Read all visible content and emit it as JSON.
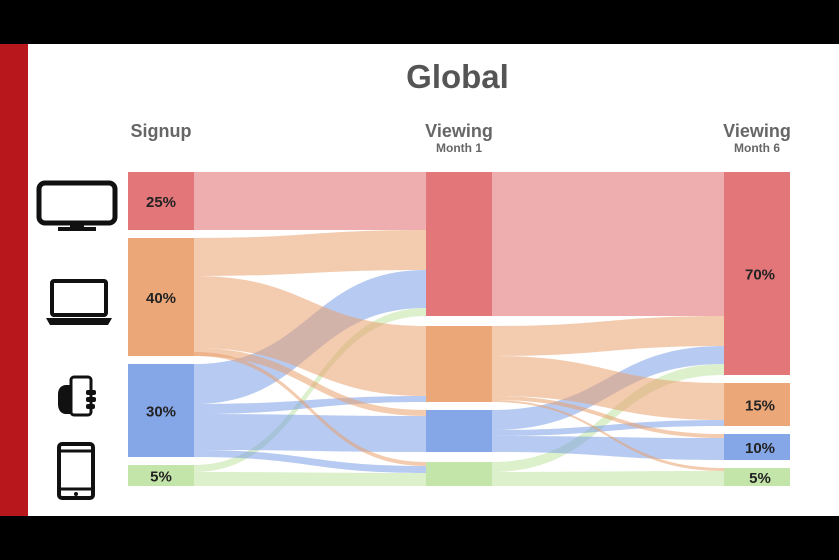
{
  "title": "Global",
  "columns": {
    "signup": {
      "label": "Signup",
      "sub": ""
    },
    "month1": {
      "label": "Viewing",
      "sub": "Month 1"
    },
    "month6": {
      "label": "Viewing",
      "sub": "Month 6"
    }
  },
  "devices": [
    {
      "name": "tv-icon"
    },
    {
      "name": "laptop-icon"
    },
    {
      "name": "phone-icon"
    },
    {
      "name": "tablet-icon"
    }
  ],
  "signup_labels": [
    "25%",
    "40%",
    "30%",
    "5%"
  ],
  "month6_labels": [
    "70%",
    "15%",
    "10%",
    "5%"
  ],
  "colors": {
    "tv": "#e06a6e",
    "laptop": "#eaa06e",
    "phone": "#7b9fe6",
    "tablet": "#bfe3a2",
    "accent_bar": "#b8181c"
  }
}
